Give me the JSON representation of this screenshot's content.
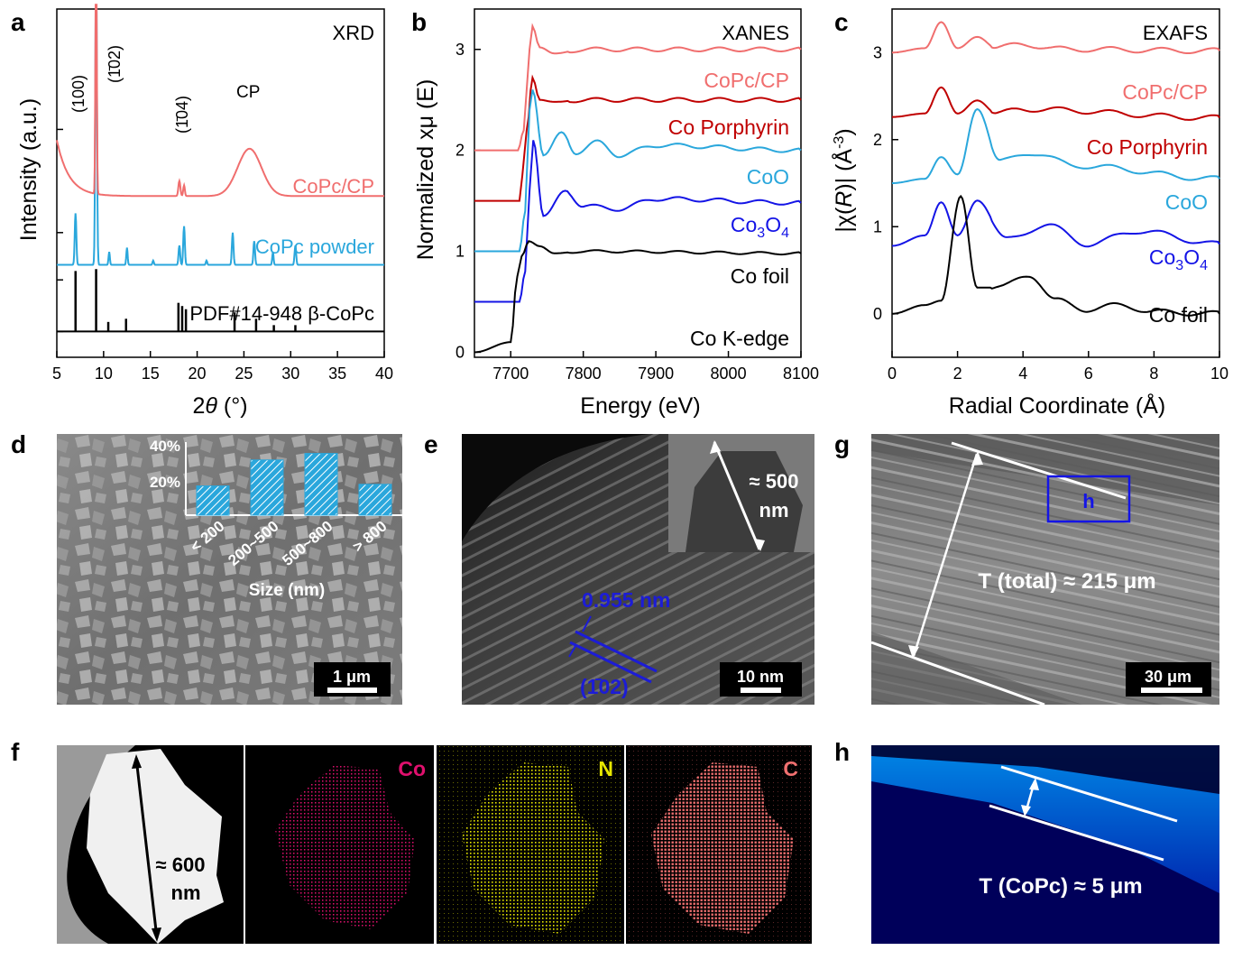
{
  "colors": {
    "salmon": "#f06e6e",
    "cyan": "#2aa7dc",
    "darkred": "#c00000",
    "blue": "#1414e6",
    "black": "#000000",
    "dark_blue_label": "#1c1cd6",
    "map_co": "#e0106e",
    "map_n": "#e6e600",
    "map_c": "#f07070"
  },
  "panels": {
    "a": {
      "letter": "a",
      "tag": "XRD",
      "ylabel": "Intensity (a.u.)",
      "xlabel": "2θ (°)",
      "xlabel_theta": "θ",
      "xlabel_prefix": "2",
      "xlabel_suffix": " (°)",
      "peak_labels": {
        "p100": "(100)",
        "p102": "(1̄02)",
        "p104": "(1̄04)",
        "cp": "CP"
      },
      "series_labels": {
        "copc_cp": "CoPc/CP",
        "copc_powder": "CoPc powder",
        "pdf": "PDF#14-948 β-CoPc"
      },
      "xticks": [
        "5",
        "10",
        "15",
        "20",
        "25",
        "30",
        "35",
        "40"
      ]
    },
    "b": {
      "letter": "b",
      "tag": "XANES",
      "edge": "Co K-edge",
      "ylabel": "Normalized xμ (E)",
      "xlabel": "Energy (eV)",
      "series_labels": {
        "copc_cp": "CoPc/CP",
        "porphyrin": "Co Porphyrin",
        "coo": "CoO",
        "co3o4_base": "Co",
        "co3o4_sub1": "3",
        "co3o4_mid": "O",
        "co3o4_sub2": "4",
        "cofoil": "Co foil"
      },
      "xticks": [
        "7700",
        "7800",
        "7900",
        "8000",
        "8100"
      ],
      "yticks": [
        "0",
        "1",
        "2",
        "3"
      ]
    },
    "c": {
      "letter": "c",
      "tag": "EXAFS",
      "ylabel": "|χ(R)| (Å-3)",
      "ylabel_pre": "|χ(",
      "ylabel_r": "R",
      "ylabel_mid": ")| (Å",
      "ylabel_sup": "-3",
      "ylabel_post": ")",
      "xlabel": "Radial Coordinate (Å)",
      "series_labels": {
        "copc_cp": "CoPc/CP",
        "porphyrin": "Co Porphyrin",
        "coo": "CoO",
        "co3o4_base": "Co",
        "co3o4_sub1": "3",
        "co3o4_mid": "O",
        "co3o4_sub2": "4",
        "cofoil": "Co foil"
      },
      "xticks": [
        "0",
        "2",
        "4",
        "6",
        "8",
        "10"
      ],
      "yticks": [
        "0",
        "1",
        "2",
        "3"
      ]
    },
    "d": {
      "letter": "d",
      "scale": "1 μm",
      "inset": {
        "yticks": [
          "20%",
          "40%"
        ],
        "categories": [
          "< 200",
          "200~500",
          "500~800",
          "> 800"
        ],
        "values": [
          18,
          34,
          38,
          19
        ],
        "xlabel": "Size (nm)"
      }
    },
    "e": {
      "letter": "e",
      "scale": "10 nm",
      "spacing": "0.955 nm",
      "plane": "(1̄02)",
      "inset_size": "≈ 500",
      "inset_unit": "nm"
    },
    "f": {
      "letter": "f",
      "size": "≈ 600",
      "size_unit": "nm",
      "maps": {
        "co": "Co",
        "n": "N",
        "c": "C"
      }
    },
    "g": {
      "letter": "g",
      "scale": "30 μm",
      "box": "h",
      "thickness": "T (total) ≈ 215 μm"
    },
    "h": {
      "letter": "h",
      "thickness": "T (CoPc) ≈ 5 μm"
    }
  },
  "chart_data": [
    {
      "type": "line",
      "title": "XRD",
      "xlabel": "2θ (°)",
      "ylabel": "Intensity (a.u.)",
      "xlim": [
        5,
        40
      ],
      "series": [
        {
          "name": "CoPc/CP",
          "x": [
            5,
            6,
            7,
            8,
            9,
            9.2,
            10,
            12,
            15,
            17,
            18,
            18.5,
            19,
            20,
            22,
            24,
            25,
            25.8,
            27,
            28,
            30,
            35,
            40
          ],
          "values": [
            2.8,
            2.2,
            1.6,
            1.3,
            1.3,
            5.0,
            1.2,
            1.1,
            1.05,
            1.1,
            1.6,
            1.5,
            1.2,
            1.15,
            1.3,
            1.8,
            2.3,
            2.5,
            2.2,
            1.7,
            1.25,
            1.05,
            1.0
          ]
        },
        {
          "name": "CoPc powder",
          "x": [
            5,
            7,
            9.2,
            10.5,
            12.5,
            18,
            18.5,
            23.8,
            26,
            28,
            30.5,
            35,
            40
          ],
          "values": [
            0.2,
            0.9,
            5.0,
            0.35,
            0.45,
            0.6,
            0.95,
            0.7,
            0.55,
            0.3,
            0.5,
            0.05,
            0.0
          ]
        },
        {
          "name": "PDF#14-948 β-CoPc",
          "x": [
            7,
            9.2,
            10.5,
            12.4,
            18,
            18.4,
            18.8,
            24,
            26.3,
            28.2,
            30.5
          ],
          "values": [
            0.95,
            0.98,
            0.15,
            0.2,
            0.45,
            0.4,
            0.35,
            0.3,
            0.2,
            0.1,
            0.1
          ]
        }
      ]
    },
    {
      "type": "line",
      "title": "XANES",
      "xlabel": "Energy (eV)",
      "ylabel": "Normalized xμ (E)",
      "xlim": [
        7650,
        8100
      ],
      "ylim": [
        -0.05,
        3.4
      ],
      "series": [
        {
          "name": "CoPc/CP",
          "x": [
            7650,
            7710,
            7718,
            7722,
            7726,
            7730,
            7740,
            7760,
            7800,
            8100
          ],
          "values": [
            2.0,
            2.0,
            2.2,
            2.6,
            3.0,
            3.23,
            3.02,
            2.96,
            3.0,
            3.0
          ]
        },
        {
          "name": "Co Porphyrin",
          "x": [
            7650,
            7712,
            7716,
            7722,
            7730,
            7740,
            7760,
            7800,
            8100
          ],
          "values": [
            1.5,
            1.5,
            1.75,
            2.2,
            2.72,
            2.5,
            2.48,
            2.5,
            2.5
          ]
        },
        {
          "name": "CoO",
          "x": [
            7650,
            7712,
            7720,
            7726,
            7730,
            7745,
            7770,
            7790,
            7820,
            7850,
            7900,
            8100
          ],
          "values": [
            1.0,
            1.0,
            1.4,
            2.4,
            2.6,
            1.95,
            2.18,
            1.98,
            2.08,
            1.95,
            2.05,
            2.0
          ]
        },
        {
          "name": "Co3O4",
          "x": [
            7650,
            7712,
            7720,
            7726,
            7731,
            7745,
            7775,
            7800,
            7850,
            7900,
            8100
          ],
          "values": [
            0.5,
            0.5,
            0.8,
            1.6,
            2.1,
            1.35,
            1.6,
            1.45,
            1.42,
            1.52,
            1.48
          ]
        },
        {
          "name": "Co foil",
          "x": [
            7650,
            7700,
            7709,
            7715,
            7725,
            7740,
            7760,
            7800,
            8100
          ],
          "values": [
            0.0,
            0.1,
            0.75,
            0.95,
            1.1,
            1.05,
            0.98,
            1.0,
            0.98
          ]
        }
      ]
    },
    {
      "type": "line",
      "title": "EXAFS",
      "xlabel": "Radial Coordinate (Å)",
      "ylabel": "|χ(R)| (Å-3)",
      "xlim": [
        0,
        10
      ],
      "ylim": [
        -0.5,
        3.5
      ],
      "series": [
        {
          "name": "CoPc/CP",
          "x": [
            0,
            1,
            1.5,
            2,
            2.6,
            3.2,
            4,
            5,
            10
          ],
          "values": [
            3.0,
            3.05,
            3.35,
            3.05,
            3.18,
            3.05,
            3.1,
            3.04,
            3.02
          ]
        },
        {
          "name": "Co Porphyrin",
          "x": [
            0,
            1,
            1.5,
            2,
            2.6,
            3.2,
            4,
            10
          ],
          "values": [
            2.26,
            2.3,
            2.6,
            2.3,
            2.45,
            2.3,
            2.35,
            2.25
          ]
        },
        {
          "name": "CoO",
          "x": [
            0,
            1,
            1.5,
            2,
            2.6,
            3.3,
            4.3,
            5.6,
            10
          ],
          "values": [
            1.5,
            1.55,
            1.8,
            1.6,
            2.35,
            1.75,
            1.85,
            1.7,
            1.55
          ]
        },
        {
          "name": "Co3O4",
          "x": [
            0,
            1,
            1.5,
            2,
            2.6,
            3.5,
            4.7,
            6,
            7.5,
            10
          ],
          "values": [
            0.78,
            0.9,
            1.28,
            0.9,
            1.3,
            0.85,
            1.02,
            0.8,
            0.95,
            0.8
          ]
        },
        {
          "name": "Co foil",
          "x": [
            0,
            1,
            1.5,
            2.1,
            2.6,
            3.3,
            4.2,
            5,
            6,
            7,
            8,
            10
          ],
          "values": [
            0.0,
            0.1,
            0.15,
            1.35,
            0.3,
            0.3,
            0.45,
            0.15,
            0.05,
            0.1,
            0.02,
            0.0
          ]
        }
      ]
    },
    {
      "type": "bar",
      "title": "",
      "categories": [
        "< 200",
        "200~500",
        "500~800",
        "> 800"
      ],
      "values": [
        18,
        34,
        38,
        19
      ],
      "xlabel": "Size (nm)",
      "ylabel": "",
      "ylim": [
        0,
        45
      ]
    }
  ]
}
